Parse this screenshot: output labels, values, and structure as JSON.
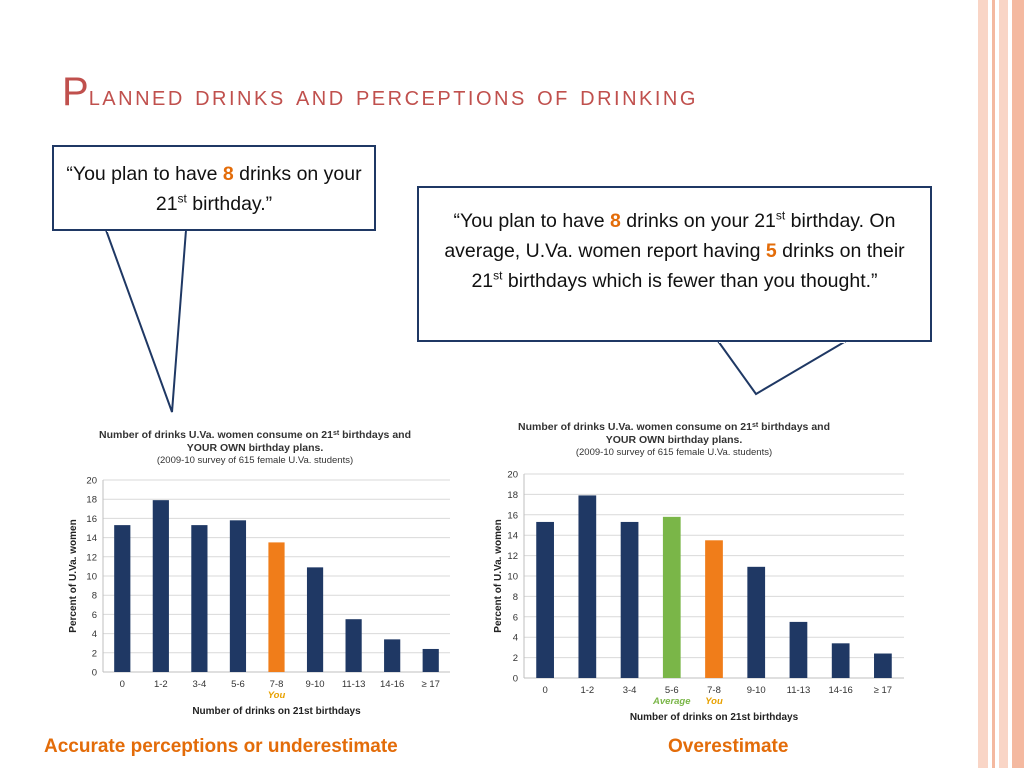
{
  "slide": {
    "title_first": "P",
    "title_rest": "lanned drinks and perceptions of drinking",
    "accent_colors": [
      "#f9d5c6",
      "#f4b9a0",
      "#ffffff"
    ]
  },
  "bubble_left": {
    "prefix": "“You plan to have ",
    "number": "8",
    "middle": " drinks on your 21",
    "sup": "st",
    "suffix": " birthday.”"
  },
  "bubble_right": {
    "prefix": "“You plan to have ",
    "number": "8",
    "middle1": " drinks on your 21",
    "sup1": "st",
    "middle2": " birthday. On average, U.Va. women report having ",
    "number2": "5",
    "middle3": " drinks on their 21",
    "sup2": "st",
    "suffix": " birthdays which is fewer than you thought.”"
  },
  "captions": {
    "left": "Accurate perceptions or underestimate",
    "right": "Overestimate"
  },
  "chart_data": [
    {
      "type": "bar",
      "title_line1": "Number of drinks U.Va. women consume on 21",
      "title_sup": "st",
      "title_line1_end": " birthdays and",
      "title_line2": "YOUR OWN birthday plans.",
      "subtitle": "(2009-10 survey of 615 female U.Va. students)",
      "xlabel": "Number of drinks on 21st birthdays",
      "ylabel": "Percent of U.Va. women",
      "ylim": [
        0,
        20
      ],
      "yticks": [
        "0",
        "2",
        "4",
        "6",
        "8",
        "10",
        "12",
        "14",
        "16",
        "18",
        "20"
      ],
      "categories": [
        "0",
        "1-2",
        "3-4",
        "5-6",
        "7-8",
        "9-10",
        "11-13",
        "14-16",
        "≥ 17"
      ],
      "values": [
        15.3,
        17.9,
        15.3,
        15.8,
        13.5,
        10.9,
        5.5,
        3.4,
        2.4
      ],
      "bar_colors": [
        "#1f3864",
        "#1f3864",
        "#1f3864",
        "#1f3864",
        "#f07d1a",
        "#1f3864",
        "#1f3864",
        "#1f3864",
        "#1f3864"
      ],
      "markers": [
        {
          "category_index": 4,
          "text": "You",
          "color": "#e8a100"
        }
      ],
      "grid": true
    },
    {
      "type": "bar",
      "title_line1": "Number of drinks U.Va. women consume on 21",
      "title_sup": "st",
      "title_line1_end": " birthdays and",
      "title_line2": "YOUR OWN birthday plans.",
      "subtitle": "(2009-10 survey of 615 female U.Va. students)",
      "xlabel": "Number of drinks on 21st birthdays",
      "ylabel": "Percent of U.Va. women",
      "ylim": [
        0,
        20
      ],
      "yticks": [
        "0",
        "2",
        "4",
        "6",
        "8",
        "10",
        "12",
        "14",
        "16",
        "18",
        "20"
      ],
      "categories": [
        "0",
        "1-2",
        "3-4",
        "5-6",
        "7-8",
        "9-10",
        "11-13",
        "14-16",
        "≥ 17"
      ],
      "values": [
        15.3,
        17.9,
        15.3,
        15.8,
        13.5,
        10.9,
        5.5,
        3.4,
        2.4
      ],
      "bar_colors": [
        "#1f3864",
        "#1f3864",
        "#1f3864",
        "#7ab648",
        "#f07d1a",
        "#1f3864",
        "#1f3864",
        "#1f3864",
        "#1f3864"
      ],
      "markers": [
        {
          "category_index": 3,
          "text": "Average",
          "color": "#7ab648"
        },
        {
          "category_index": 4,
          "text": "You",
          "color": "#e8a100"
        }
      ],
      "grid": true
    }
  ]
}
